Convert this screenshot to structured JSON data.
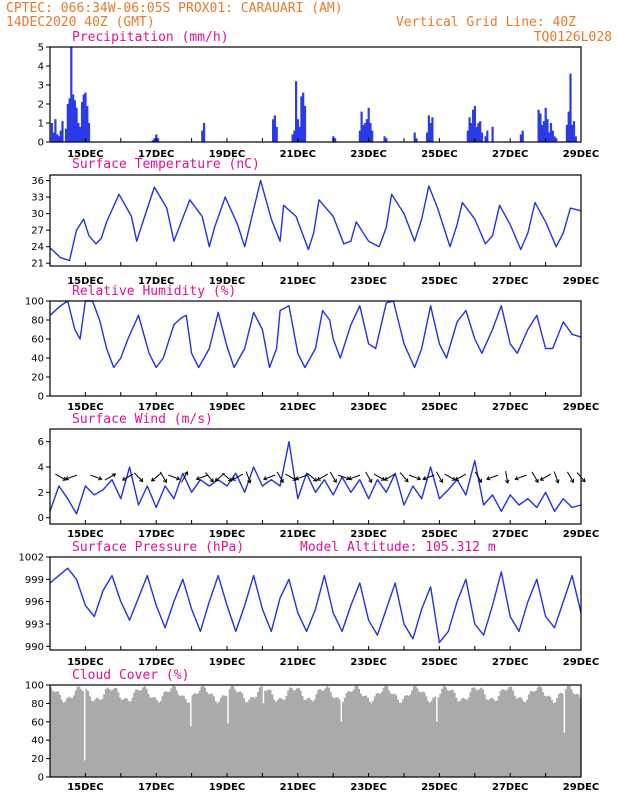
{
  "header": {
    "line1": "CPTEC:   066:34W-06:05S   PROX01: CARAUARI (AM)",
    "line2_left": "14DEC2020 40Z (GMT)",
    "line2_right": "Vertical Grid Line: 40Z",
    "line3_right": "TQ0126L028"
  },
  "model_altitude": "Model Altitude: 105.312 m",
  "x_axis": {
    "day_range": [
      14,
      29
    ],
    "tick_days": [
      15,
      17,
      19,
      21,
      23,
      25,
      27,
      29
    ],
    "tick_labels": [
      "15DEC",
      "17DEC",
      "19DEC",
      "21DEC",
      "23DEC",
      "25DEC",
      "27DEC",
      "29DEC"
    ]
  },
  "colors": {
    "series": "#2233dd",
    "bars": "#2b3be6",
    "cloud": "#aaaaaa",
    "title": "#e0109a",
    "header": "#e8792b"
  },
  "chart_data": [
    {
      "type": "bar",
      "title": "Precipitation (mm/h)",
      "ylim": [
        0,
        5
      ],
      "yticks": [
        0,
        1,
        2,
        3,
        4,
        5
      ],
      "x_days": [
        14.05,
        14.1,
        14.15,
        14.2,
        14.25,
        14.3,
        14.35,
        14.45,
        14.5,
        14.55,
        14.6,
        14.65,
        14.7,
        14.75,
        14.8,
        14.85,
        14.9,
        14.95,
        15.0,
        15.05,
        15.1,
        16.9,
        16.95,
        17.0,
        17.05,
        18.3,
        18.35,
        20.3,
        20.35,
        20.4,
        20.85,
        20.9,
        20.95,
        21.0,
        21.05,
        21.1,
        21.15,
        21.2,
        22.0,
        22.05,
        22.75,
        22.8,
        22.85,
        22.9,
        22.95,
        23.0,
        23.05,
        23.1,
        23.45,
        23.5,
        24.3,
        24.35,
        24.65,
        24.7,
        24.75,
        24.8,
        25.8,
        25.85,
        25.9,
        25.95,
        26.0,
        26.05,
        26.1,
        26.15,
        26.2,
        26.3,
        26.35,
        26.5,
        27.3,
        27.35,
        27.8,
        27.85,
        27.9,
        27.95,
        28.0,
        28.05,
        28.1,
        28.15,
        28.2,
        28.25,
        28.3,
        28.6,
        28.65,
        28.7,
        28.75,
        28.8,
        28.85
      ],
      "values": [
        1.0,
        0.5,
        1.2,
        0.4,
        0.3,
        0.6,
        1.1,
        0.7,
        2.0,
        2.3,
        5.0,
        2.5,
        2.2,
        1.8,
        1.0,
        0.8,
        2.1,
        2.5,
        2.6,
        1.9,
        1.0,
        0.1,
        0.2,
        0.4,
        0.2,
        0.6,
        1.0,
        1.2,
        1.4,
        0.8,
        0.4,
        0.6,
        3.2,
        1.2,
        0.8,
        2.4,
        2.6,
        1.9,
        0.3,
        0.2,
        0.6,
        1.6,
        0.9,
        1.0,
        1.2,
        1.8,
        1.0,
        0.6,
        0.3,
        0.2,
        0.5,
        0.2,
        0.5,
        1.4,
        1.0,
        1.3,
        0.6,
        1.3,
        1.0,
        1.7,
        1.9,
        0.8,
        1.0,
        1.1,
        0.5,
        0.3,
        0.6,
        0.8,
        0.4,
        0.6,
        1.7,
        1.5,
        0.9,
        1.1,
        1.8,
        1.2,
        0.5,
        1.0,
        0.6,
        0.3,
        0.2,
        0.9,
        1.6,
        3.6,
        0.9,
        1.1,
        0.3
      ]
    },
    {
      "type": "line",
      "title": "Surface Temperature (nC)",
      "ylim": [
        20.5,
        37
      ],
      "yticks": [
        21,
        24,
        27,
        30,
        33,
        36
      ],
      "x": [
        14.0,
        14.3,
        14.55,
        14.75,
        14.95,
        15.1,
        15.3,
        15.45,
        15.6,
        15.95,
        16.3,
        16.45,
        16.6,
        16.95,
        17.3,
        17.5,
        17.65,
        17.95,
        18.3,
        18.5,
        18.65,
        18.95,
        19.3,
        19.5,
        19.65,
        19.95,
        20.25,
        20.5,
        20.6,
        20.95,
        21.3,
        21.45,
        21.6,
        22.0,
        22.3,
        22.5,
        22.65,
        23.0,
        23.3,
        23.5,
        23.65,
        24.0,
        24.3,
        24.5,
        24.7,
        24.95,
        25.3,
        25.5,
        25.65,
        26.0,
        26.3,
        26.5,
        26.7,
        27.0,
        27.3,
        27.5,
        27.7,
        28.0,
        28.3,
        28.5,
        28.7,
        29.0
      ],
      "values": [
        23.8,
        22.0,
        21.5,
        27.0,
        29.0,
        26.0,
        24.5,
        25.5,
        28.5,
        33.5,
        29.5,
        25.0,
        28.0,
        34.8,
        31.0,
        25.0,
        27.5,
        32.5,
        29.5,
        24.0,
        27.5,
        33.0,
        28.0,
        24.0,
        28.0,
        36.0,
        29.0,
        25.0,
        31.5,
        29.5,
        23.5,
        26.5,
        32.5,
        29.5,
        24.5,
        25.0,
        28.5,
        25.0,
        24.0,
        27.5,
        33.5,
        30.0,
        25.0,
        29.0,
        35.0,
        31.0,
        24.0,
        28.0,
        32.0,
        29.0,
        24.5,
        26.0,
        31.5,
        28.0,
        23.5,
        26.5,
        32.0,
        28.5,
        24.0,
        26.5,
        31.0,
        30.5
      ]
    },
    {
      "type": "line",
      "title": "Relative Humidity (%)",
      "ylim": [
        0,
        100
      ],
      "yticks": [
        0,
        20,
        40,
        60,
        80,
        100
      ],
      "x": [
        14.0,
        14.3,
        14.5,
        14.7,
        14.85,
        15.0,
        15.2,
        15.4,
        15.6,
        15.8,
        16.0,
        16.2,
        16.5,
        16.8,
        17.0,
        17.2,
        17.5,
        17.7,
        17.85,
        18.0,
        18.2,
        18.5,
        18.75,
        19.0,
        19.2,
        19.5,
        19.75,
        20.0,
        20.2,
        20.4,
        20.5,
        20.75,
        21.0,
        21.2,
        21.5,
        21.7,
        21.9,
        22.0,
        22.2,
        22.5,
        22.75,
        23.0,
        23.2,
        23.5,
        23.7,
        24.0,
        24.3,
        24.5,
        24.75,
        25.0,
        25.2,
        25.5,
        25.75,
        26.0,
        26.2,
        26.5,
        26.75,
        27.0,
        27.2,
        27.5,
        27.75,
        28.0,
        28.2,
        28.5,
        28.75,
        29.0
      ],
      "values": [
        85,
        95,
        100,
        70,
        60,
        100,
        100,
        80,
        50,
        30,
        40,
        60,
        85,
        45,
        30,
        40,
        75,
        82,
        85,
        45,
        30,
        50,
        88,
        52,
        30,
        50,
        88,
        70,
        30,
        50,
        90,
        95,
        45,
        30,
        50,
        90,
        80,
        60,
        40,
        75,
        95,
        55,
        50,
        98,
        100,
        55,
        30,
        50,
        95,
        55,
        40,
        78,
        90,
        60,
        45,
        70,
        95,
        55,
        45,
        70,
        85,
        50,
        50,
        78,
        65,
        62
      ]
    },
    {
      "type": "line",
      "title": "Surface Wind (m/s)",
      "ylim": [
        -0.5,
        7
      ],
      "yticks": [
        0,
        2,
        4,
        6
      ],
      "x": [
        14.0,
        14.25,
        14.5,
        14.75,
        15.0,
        15.25,
        15.5,
        15.75,
        16.0,
        16.25,
        16.5,
        16.75,
        17.0,
        17.25,
        17.5,
        17.75,
        18.0,
        18.25,
        18.5,
        18.75,
        19.0,
        19.25,
        19.5,
        19.75,
        20.0,
        20.25,
        20.5,
        20.75,
        21.0,
        21.25,
        21.5,
        21.75,
        22.0,
        22.25,
        22.5,
        22.75,
        23.0,
        23.25,
        23.5,
        23.75,
        24.0,
        24.25,
        24.5,
        24.75,
        25.0,
        25.25,
        25.5,
        25.75,
        26.0,
        26.25,
        26.5,
        26.75,
        27.0,
        27.25,
        27.5,
        27.75,
        28.0,
        28.25,
        28.5,
        28.75,
        29.0
      ],
      "values": [
        0.5,
        2.5,
        1.5,
        0.3,
        2.5,
        1.8,
        2.2,
        3.0,
        1.5,
        4.0,
        1.0,
        2.5,
        0.8,
        2.5,
        1.5,
        3.5,
        2.0,
        3.0,
        2.5,
        3.0,
        2.5,
        3.5,
        2.0,
        4.0,
        2.5,
        3.0,
        2.5,
        6.0,
        1.5,
        3.5,
        2.0,
        3.0,
        1.8,
        3.2,
        2.0,
        3.0,
        1.5,
        3.0,
        2.0,
        3.5,
        1.0,
        2.5,
        1.5,
        4.0,
        1.5,
        2.2,
        3.0,
        1.8,
        4.5,
        1.0,
        1.8,
        0.5,
        1.8,
        1.0,
        1.5,
        0.8,
        2.0,
        0.5,
        1.5,
        0.8,
        1.0
      ]
    },
    {
      "type": "line",
      "title": "Surface Pressure (hPa)",
      "ylim": [
        989.5,
        1002
      ],
      "yticks": [
        990,
        993,
        996,
        999,
        1002
      ],
      "x": [
        14.0,
        14.25,
        14.5,
        14.75,
        15.0,
        15.25,
        15.5,
        15.75,
        16.0,
        16.25,
        16.5,
        16.75,
        17.0,
        17.25,
        17.5,
        17.75,
        18.0,
        18.25,
        18.5,
        18.75,
        19.0,
        19.25,
        19.5,
        19.75,
        20.0,
        20.25,
        20.5,
        20.75,
        21.0,
        21.25,
        21.5,
        21.75,
        22.0,
        22.25,
        22.5,
        22.75,
        23.0,
        23.25,
        23.5,
        23.75,
        24.0,
        24.25,
        24.5,
        24.75,
        25.0,
        25.25,
        25.5,
        25.75,
        26.0,
        26.25,
        26.5,
        26.75,
        27.0,
        27.25,
        27.5,
        27.75,
        28.0,
        28.25,
        28.5,
        28.75,
        29.0
      ],
      "values": [
        998.5,
        999.5,
        1000.5,
        999.0,
        995.5,
        994.0,
        997.5,
        999.5,
        996.0,
        993.5,
        996.5,
        999.5,
        995.5,
        992.5,
        996.0,
        999.0,
        995.0,
        992.0,
        996.0,
        999.5,
        995.5,
        992.0,
        995.5,
        999.5,
        995.0,
        992.0,
        996.5,
        999.0,
        994.5,
        992.0,
        995.0,
        999.5,
        994.5,
        992.0,
        995.5,
        998.5,
        993.5,
        991.5,
        995.0,
        998.5,
        993.0,
        991.0,
        995.0,
        998.0,
        990.5,
        992.0,
        996.0,
        999.0,
        993.0,
        991.5,
        995.5,
        1000.0,
        994.0,
        992.0,
        996.0,
        999.0,
        994.0,
        992.5,
        996.0,
        999.5,
        994.5
      ]
    },
    {
      "type": "area",
      "title": "Cloud Cover (%)",
      "ylim": [
        0,
        100
      ],
      "yticks": [
        0,
        20,
        40,
        60,
        80,
        100
      ],
      "base_percent": 90,
      "dips": [
        [
          14.95,
          18
        ],
        [
          17.95,
          55
        ],
        [
          19.0,
          58
        ],
        [
          20.0,
          80
        ],
        [
          22.2,
          60
        ],
        [
          24.9,
          60
        ],
        [
          28.5,
          48
        ]
      ]
    }
  ],
  "wind_arrows": {
    "y_value": 3.2,
    "x_days": [
      14.3,
      14.6,
      15.3,
      15.7,
      16.2,
      16.5,
      17.0,
      17.2,
      17.5,
      17.8,
      18.3,
      18.5,
      18.8,
      19.0,
      19.3,
      19.6,
      20.2,
      20.5,
      20.8,
      21.1,
      21.4,
      21.7,
      22.0,
      22.3,
      22.6,
      23.0,
      23.3,
      23.6,
      24.0,
      24.3,
      24.7,
      25.0,
      25.3,
      25.6,
      26.1,
      26.5,
      26.9,
      27.3,
      27.7,
      28.0,
      28.3,
      28.7,
      29.0
    ],
    "angles_deg": [
      -30,
      200,
      -20,
      30,
      210,
      -45,
      220,
      -60,
      -20,
      60,
      200,
      -50,
      220,
      -40,
      210,
      -70,
      200,
      -60,
      -30,
      200,
      -40,
      210,
      -60,
      -20,
      200,
      -60,
      -30,
      210,
      -50,
      -20,
      200,
      -60,
      -30,
      210,
      -60,
      200,
      -80,
      200,
      -60,
      210,
      -70,
      -60,
      -50
    ]
  }
}
